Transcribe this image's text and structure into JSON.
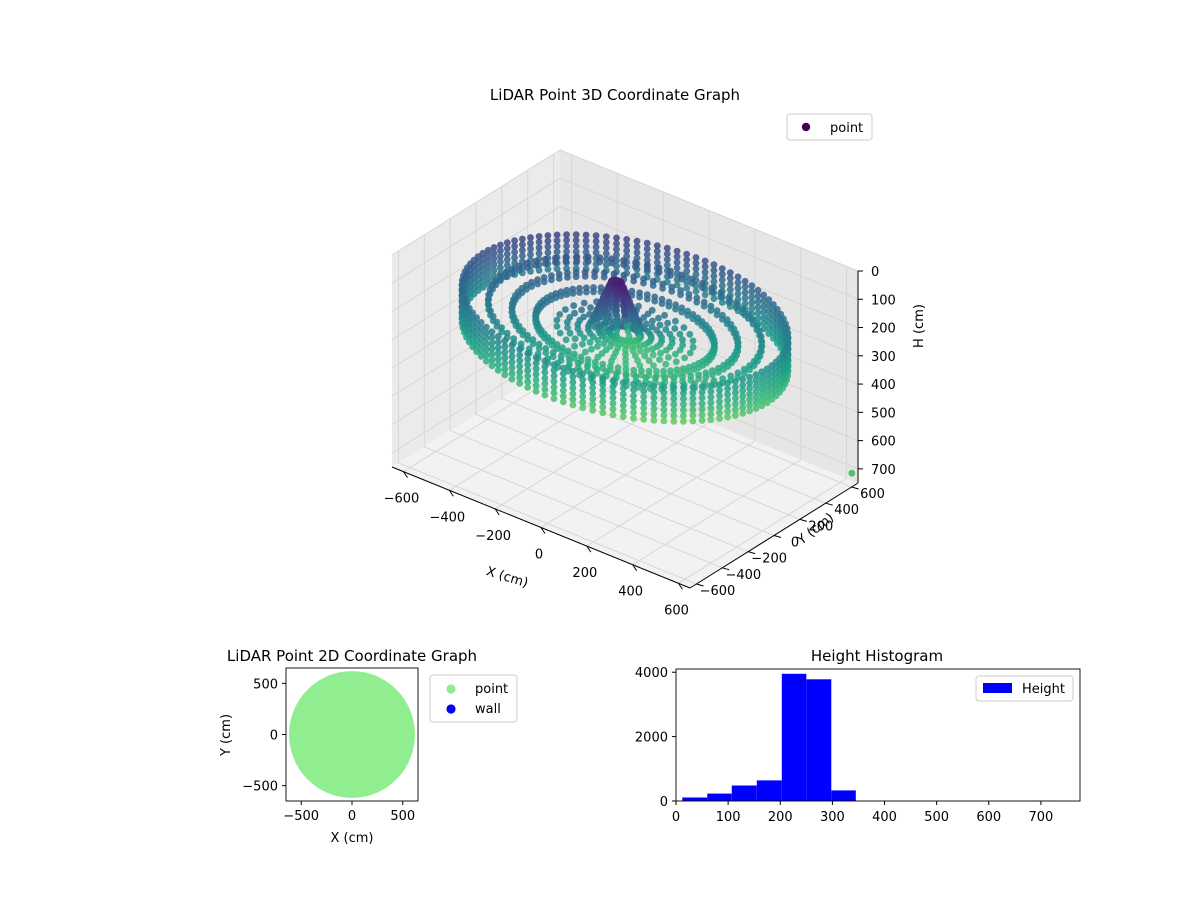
{
  "chart_data": [
    {
      "type": "scatter3d",
      "title": "LiDAR Point 3D Coordinate Graph",
      "xlabel": "X (cm)",
      "ylabel": "Y (cm)",
      "zlabel": "H (cm)",
      "xticks": [
        -600,
        -400,
        -200,
        0,
        200,
        400,
        600
      ],
      "yticks": [
        -600,
        -400,
        -200,
        0,
        200,
        400,
        600
      ],
      "zticks": [
        0,
        100,
        200,
        300,
        400,
        500,
        600,
        700
      ],
      "xlim": [
        -650,
        650
      ],
      "ylim": [
        -650,
        650
      ],
      "zlim": [
        0,
        750
      ],
      "z_inverted": true,
      "legend": {
        "entries": [
          "point"
        ],
        "placement": "upper-right"
      },
      "colormap": "viridis",
      "grid": true,
      "structure": {
        "outer_ring": {
          "radius": 620,
          "h_top": 170,
          "h_bottom": 290,
          "step_deg": 3.6
        },
        "inner_rings": [
          {
            "radius": 520,
            "h": 205
          },
          {
            "radius": 430,
            "h": 220
          },
          {
            "radius": 340,
            "h": 235
          }
        ],
        "center_cluster": {
          "x": -60,
          "y": 40,
          "h_top": 100
        },
        "outlier": {
          "x": 640,
          "y": 620,
          "h": 710
        }
      }
    },
    {
      "type": "scatter",
      "title": "LiDAR Point 2D Coordinate Graph",
      "xlabel": "X (cm)",
      "ylabel": "Y (cm)",
      "xticks": [
        -500,
        0,
        500
      ],
      "yticks": [
        -500,
        0,
        500
      ],
      "xlim": [
        -650,
        650
      ],
      "ylim": [
        -650,
        650
      ],
      "legend": {
        "entries": [
          "point",
          "wall"
        ],
        "placement": "outside-right"
      },
      "series": [
        {
          "name": "point",
          "color": "#90ee90",
          "shape": "disk",
          "center": [
            0,
            0
          ],
          "radius": 620
        },
        {
          "name": "wall",
          "color": "#0000ff",
          "points": []
        }
      ]
    },
    {
      "type": "bar",
      "title": "Height Histogram",
      "xticks": [
        0,
        100,
        200,
        300,
        400,
        500,
        600,
        700
      ],
      "yticks": [
        0,
        2000,
        4000
      ],
      "xlim": [
        0,
        775
      ],
      "ylim": [
        0,
        4100
      ],
      "legend": {
        "entries": [
          "Height"
        ],
        "placement": "upper-right"
      },
      "color": "#0000ff",
      "bins": [
        {
          "from": 12,
          "to": 60,
          "value": 110
        },
        {
          "from": 60,
          "to": 107,
          "value": 230
        },
        {
          "from": 107,
          "to": 155,
          "value": 480
        },
        {
          "from": 155,
          "to": 203,
          "value": 640
        },
        {
          "from": 203,
          "to": 250,
          "value": 3950
        },
        {
          "from": 250,
          "to": 298,
          "value": 3780
        },
        {
          "from": 298,
          "to": 345,
          "value": 330
        },
        {
          "from": 345,
          "to": 393,
          "value": 0
        },
        {
          "from": 393,
          "to": 441,
          "value": 0
        },
        {
          "from": 441,
          "to": 488,
          "value": 0
        },
        {
          "from": 488,
          "to": 536,
          "value": 0
        },
        {
          "from": 536,
          "to": 584,
          "value": 0
        },
        {
          "from": 584,
          "to": 631,
          "value": 0
        },
        {
          "from": 631,
          "to": 679,
          "value": 0
        },
        {
          "from": 679,
          "to": 726,
          "value": 5
        }
      ]
    }
  ]
}
